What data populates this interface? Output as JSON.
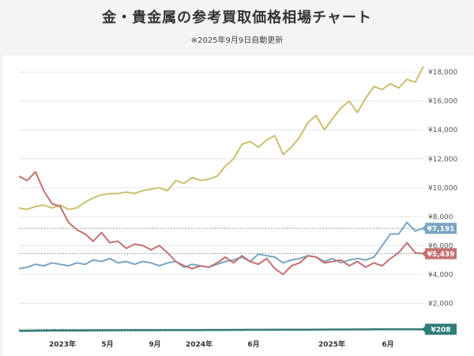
{
  "page": {
    "title": "金・貴金属の参考買取価格相場チャート",
    "subtitle": "※2025年9月9日自動更新"
  },
  "chart_data": {
    "type": "line",
    "x_ticks": [
      "2023年",
      "5月",
      "9月",
      "2024年",
      "6月",
      "2025年",
      "6月"
    ],
    "y_ticks": [
      "¥2,000",
      "¥4,000",
      "¥6,000",
      "¥8,000",
      "¥10,000",
      "¥12,000",
      "¥14,000",
      "¥16,000",
      "¥18,000"
    ],
    "ylim": [
      0,
      18500
    ],
    "grid": true,
    "series": [
      {
        "name": "",
        "color": "#cbbf6e",
        "values": [
          8600,
          8500,
          8700,
          8800,
          8600,
          8800,
          8500,
          8600,
          9000,
          9300,
          9500,
          9600,
          9600,
          9700,
          9600,
          9800,
          9900,
          10000,
          9800,
          10500,
          10300,
          10700,
          10500,
          10600,
          10800,
          11500,
          12000,
          13000,
          13200,
          12800,
          13300,
          13600,
          12300,
          12800,
          13500,
          14500,
          15000,
          14000,
          14800,
          15500,
          16000,
          15200,
          16200,
          17000,
          16800,
          17200,
          16900,
          17500,
          17300,
          18400
        ]
      },
      {
        "name": "",
        "color": "#7aa5c2",
        "end_label": "¥7,191",
        "values": [
          4400,
          4500,
          4700,
          4600,
          4800,
          4700,
          4600,
          4800,
          4700,
          5000,
          4900,
          5100,
          4800,
          4900,
          4700,
          4900,
          4800,
          4600,
          4800,
          4900,
          4500,
          4700,
          4600,
          4500,
          4700,
          4900,
          5000,
          5200,
          4900,
          5400,
          5300,
          5200,
          4800,
          5000,
          5100,
          5300,
          5200,
          4900,
          5100,
          4800,
          5000,
          5100,
          5000,
          5200,
          6000,
          6800,
          6800,
          7600,
          7000,
          7191
        ]
      },
      {
        "name": "",
        "color": "#c27171",
        "end_label": "¥5,439",
        "values": [
          10800,
          10500,
          11100,
          9800,
          8900,
          8700,
          7600,
          7100,
          6800,
          6300,
          6900,
          6200,
          6300,
          5800,
          6100,
          6000,
          5700,
          6000,
          5500,
          4900,
          4600,
          4400,
          4600,
          4500,
          4800,
          5200,
          4800,
          5300,
          4900,
          4700,
          5100,
          4400,
          4000,
          4600,
          4800,
          5300,
          5200,
          4800,
          4900,
          5000,
          4600,
          4900,
          4500,
          4800,
          4600,
          5100,
          5500,
          6200,
          5500,
          5439
        ]
      },
      {
        "name": "",
        "color": "#2e7d78",
        "end_label": "¥208",
        "values": [
          100,
          100,
          110,
          115,
          120,
          120,
          125,
          120,
          125,
          130,
          130,
          135,
          135,
          140,
          140,
          140,
          145,
          145,
          150,
          150,
          150,
          155,
          155,
          160,
          160,
          160,
          165,
          165,
          170,
          170,
          170,
          175,
          175,
          180,
          180,
          180,
          185,
          185,
          190,
          190,
          190,
          195,
          195,
          200,
          200,
          200,
          205,
          205,
          208,
          208
        ]
      }
    ]
  }
}
